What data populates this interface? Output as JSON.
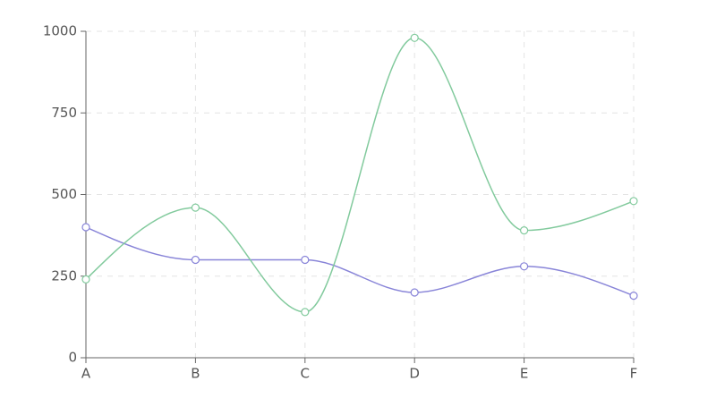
{
  "chart_data": {
    "type": "line",
    "categories": [
      "A",
      "B",
      "C",
      "D",
      "E",
      "F"
    ],
    "series": [
      {
        "color": "#8884d8",
        "values": [
          400,
          300,
          300,
          200,
          280,
          190
        ]
      },
      {
        "color": "#82ca9d",
        "values": [
          240,
          460,
          140,
          980,
          390,
          480
        ]
      }
    ],
    "ylim": [
      0,
      1000
    ],
    "yticks": [
      0,
      250,
      500,
      750,
      1000
    ],
    "grid": true,
    "curve": "monotone"
  }
}
